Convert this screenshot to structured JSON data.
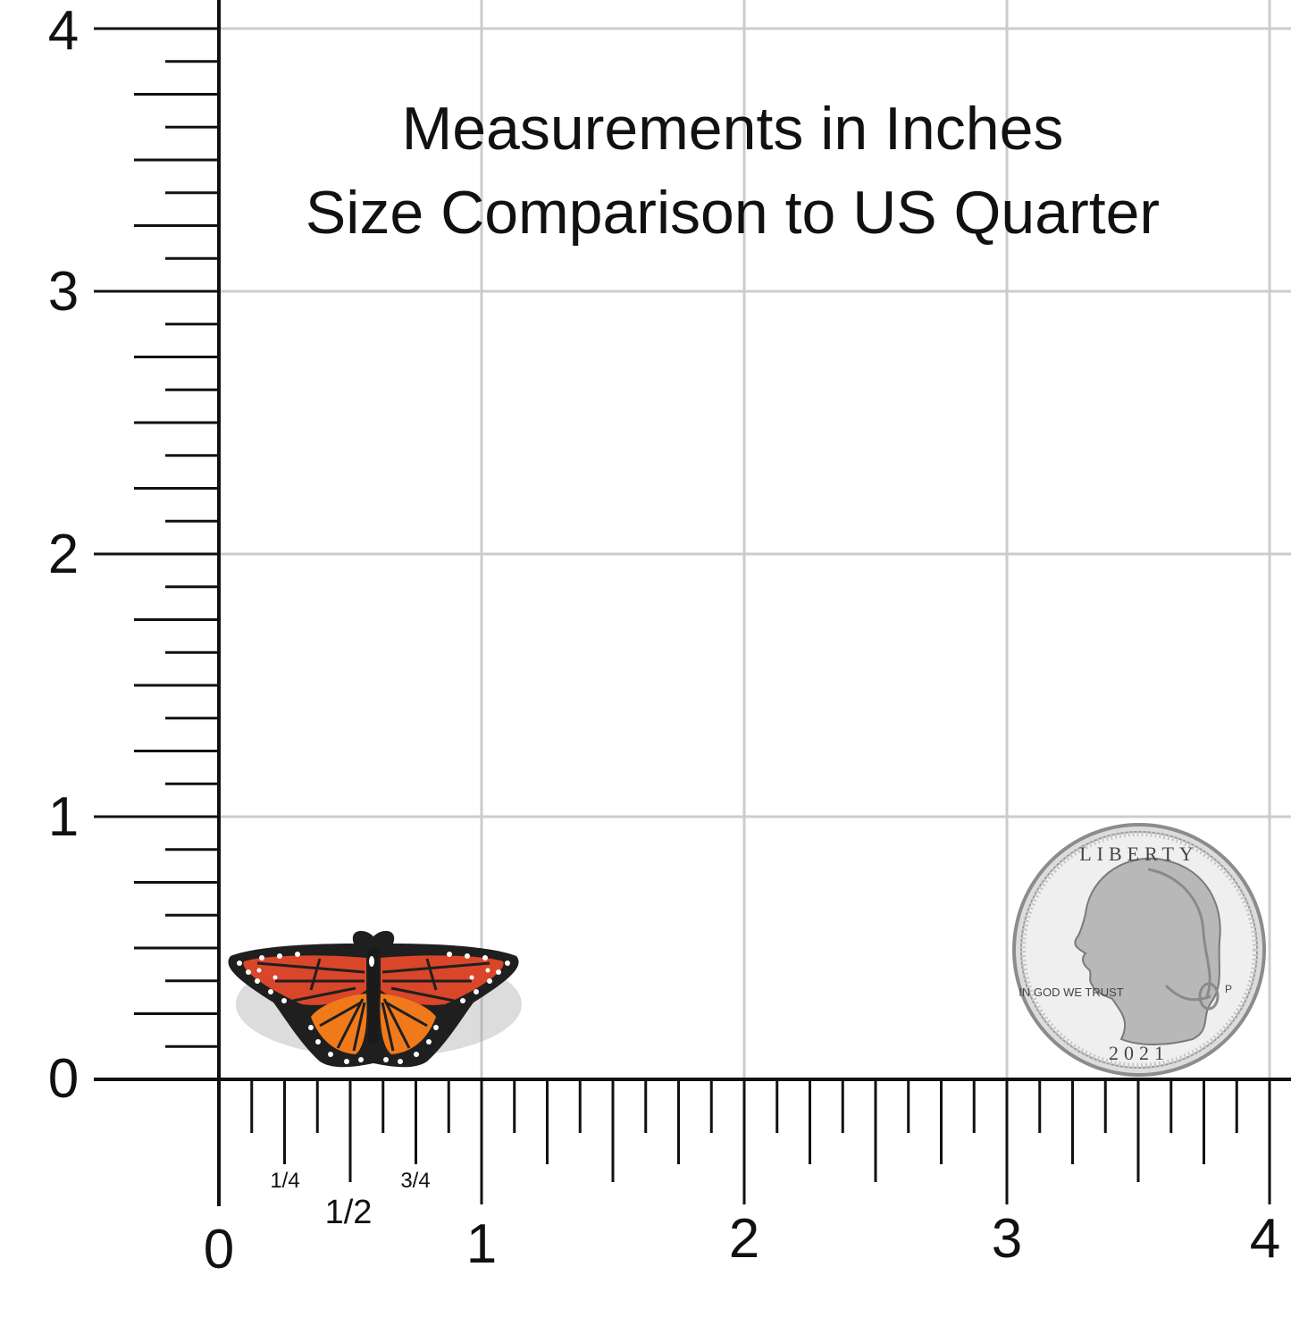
{
  "title": {
    "line1": "Measurements in Inches",
    "line2": "Size Comparison to US Quarter"
  },
  "ruler": {
    "y_labels": [
      "0",
      "1",
      "2",
      "3",
      "4"
    ],
    "x_labels": [
      "0",
      "1",
      "2",
      "3",
      "4"
    ],
    "fractions": {
      "quarter": "1/4",
      "half": "1/2",
      "three_quarter": "3/4"
    }
  },
  "objects": {
    "butterfly_pin": {
      "icon": "butterfly-icon",
      "colors": {
        "orange": "#f07a1a",
        "red_orange": "#d9462a",
        "black": "#1a1a1a",
        "white": "#ffffff"
      }
    },
    "quarter_coin": {
      "icon": "quarter-coin-icon",
      "text_liberty": "LIBERTY",
      "text_motto": "IN GOD WE TRUST",
      "text_year": "2021",
      "text_mint": "P"
    }
  },
  "colors": {
    "grid": "#cccccc",
    "ruler": "#111111",
    "background": "#ffffff"
  }
}
